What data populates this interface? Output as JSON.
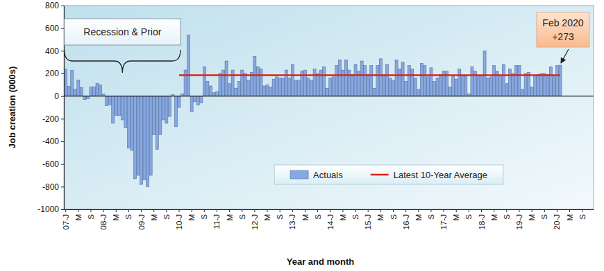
{
  "chart_data": {
    "type": "bar",
    "x_label": "Year and month",
    "y_label": "Job creation (000s)",
    "categories": [
      "07-J",
      null,
      null,
      null,
      "M",
      null,
      null,
      null,
      "S",
      null,
      null,
      null,
      "08-J",
      null,
      null,
      null,
      "M",
      null,
      null,
      null,
      "S",
      null,
      null,
      null,
      "09-J",
      null,
      null,
      null,
      "M",
      null,
      null,
      null,
      "S",
      null,
      null,
      null,
      "10-J",
      null,
      null,
      null,
      "M",
      null,
      null,
      null,
      "S",
      null,
      null,
      null,
      "11-J",
      null,
      null,
      null,
      "M",
      null,
      null,
      null,
      "S",
      null,
      null,
      null,
      "12-J",
      null,
      null,
      null,
      "M",
      null,
      null,
      null,
      "S",
      null,
      null,
      null,
      "13-J",
      null,
      null,
      null,
      "M",
      null,
      null,
      null,
      "S",
      null,
      null,
      null,
      "14-J",
      null,
      null,
      null,
      "M",
      null,
      null,
      null,
      "S",
      null,
      null,
      null,
      "15-J",
      null,
      null,
      null,
      "M",
      null,
      null,
      null,
      "S",
      null,
      null,
      null,
      "16-J",
      null,
      null,
      null,
      "M",
      null,
      null,
      null,
      "S",
      null,
      null,
      null,
      "17-J",
      null,
      null,
      null,
      "M",
      null,
      null,
      null,
      "S",
      null,
      null,
      null,
      "18-J",
      null,
      null,
      null,
      "M",
      null,
      null,
      null,
      "S",
      null,
      null,
      null,
      "19-J",
      null,
      null,
      null,
      "M",
      null,
      null,
      null,
      "S",
      null,
      null,
      null,
      "20-J",
      null,
      null,
      null,
      "M",
      null,
      null,
      null,
      "S",
      null,
      null,
      null
    ],
    "series": [
      {
        "name": "Actuals",
        "type": "bar",
        "color": "#86a8e4",
        "values": [
          238,
          88,
          229,
          61,
          143,
          77,
          -31,
          -25,
          82,
          83,
          113,
          100,
          17,
          -85,
          -78,
          -240,
          -170,
          -172,
          -210,
          -280,
          -460,
          -480,
          -730,
          -700,
          -780,
          -740,
          -800,
          -700,
          -340,
          -470,
          -340,
          -210,
          -240,
          -180,
          12,
          -270,
          -100,
          20,
          230,
          540,
          -140,
          -50,
          -80,
          -60,
          260,
          130,
          90,
          30,
          40,
          200,
          230,
          310,
          110,
          230,
          70,
          130,
          230,
          200,
          140,
          210,
          350,
          260,
          240,
          90,
          100,
          80,
          150,
          170,
          160,
          160,
          230,
          160,
          280,
          140,
          140,
          220,
          230,
          160,
          140,
          240,
          200,
          230,
          260,
          70,
          160,
          170,
          270,
          320,
          230,
          320,
          230,
          190,
          280,
          220,
          310,
          270,
          190,
          270,
          70,
          270,
          330,
          180,
          280,
          160,
          140,
          320,
          240,
          300,
          130,
          270,
          240,
          160,
          60,
          290,
          270,
          170,
          250,
          130,
          160,
          190,
          220,
          220,
          80,
          180,
          150,
          240,
          180,
          180,
          20,
          260,
          220,
          180,
          180,
          400,
          160,
          170,
          270,
          220,
          180,
          280,
          110,
          240,
          200,
          270,
          270,
          60,
          200,
          210,
          80,
          180,
          190,
          200,
          200,
          190,
          260,
          180,
          270,
          273,
          null,
          null,
          null,
          null,
          null,
          null,
          null,
          null,
          null,
          null
        ]
      },
      {
        "name": "Latest 10-Year Average",
        "type": "line",
        "color": "#e3201b",
        "values": [
          null,
          null,
          null,
          null,
          null,
          null,
          null,
          null,
          null,
          null,
          null,
          null,
          null,
          null,
          null,
          null,
          null,
          null,
          null,
          null,
          null,
          null,
          null,
          null,
          null,
          null,
          null,
          null,
          null,
          null,
          null,
          null,
          null,
          null,
          null,
          null,
          185,
          185,
          185,
          185,
          185,
          185,
          185,
          185,
          185,
          185,
          185,
          185,
          185,
          185,
          185,
          185,
          185,
          185,
          185,
          185,
          185,
          185,
          185,
          185,
          185,
          185,
          185,
          185,
          185,
          185,
          185,
          185,
          185,
          185,
          185,
          185,
          185,
          185,
          185,
          185,
          185,
          185,
          185,
          185,
          185,
          185,
          185,
          185,
          185,
          185,
          185,
          185,
          185,
          185,
          185,
          185,
          185,
          185,
          185,
          185,
          185,
          185,
          185,
          185,
          185,
          185,
          185,
          185,
          185,
          185,
          185,
          185,
          185,
          185,
          185,
          185,
          185,
          185,
          185,
          185,
          185,
          185,
          185,
          185,
          185,
          185,
          185,
          185,
          185,
          185,
          185,
          185,
          185,
          185,
          185,
          185,
          185,
          185,
          185,
          185,
          185,
          185,
          185,
          185,
          185,
          185,
          185,
          185,
          185,
          185,
          185,
          185,
          185,
          185,
          185,
          185,
          185,
          185,
          185,
          185,
          185,
          185,
          null,
          null,
          null,
          null,
          null,
          null,
          null,
          null,
          null,
          null
        ]
      }
    ],
    "ylim": [
      -1000,
      800
    ],
    "yticks": [
      -1000,
      -800,
      -600,
      -400,
      -200,
      0,
      200,
      400,
      600,
      800
    ],
    "grid": false,
    "legend": "bottom",
    "annotations": [
      {
        "text": "Recession & Prior",
        "start": 0,
        "end": 36
      },
      {
        "text": [
          "Feb 2020",
          "+273"
        ],
        "index": 157
      }
    ]
  }
}
